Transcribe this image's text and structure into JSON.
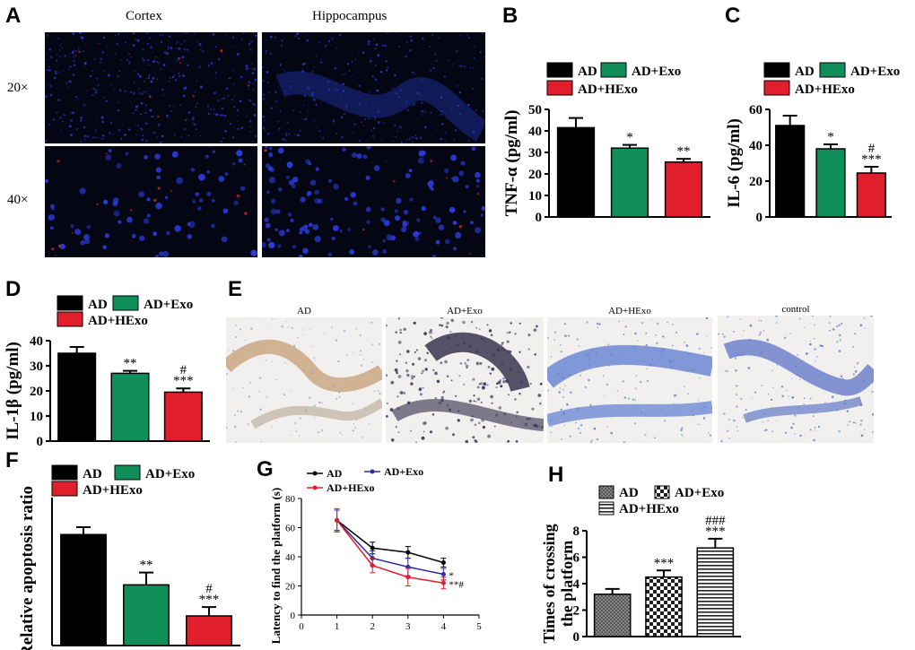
{
  "panel_labels": {
    "A": "A",
    "B": "B",
    "C": "C",
    "D": "D",
    "E": "E",
    "F": "F",
    "G": "G",
    "H": "H"
  },
  "panel_a": {
    "columns": [
      "Cortex",
      "Hippocampus"
    ],
    "rows": [
      "20×",
      "40×"
    ]
  },
  "panel_e": {
    "images": [
      "AD",
      "AD+Exo",
      "AD+HExo",
      "control"
    ]
  },
  "colors": {
    "AD": "#000000",
    "AD+Exo": "#0f8e5a",
    "AD+HExo": "#e01e2c",
    "Exo_line": "#2b2ba8"
  },
  "chart_data": [
    {
      "id": "B",
      "type": "bar",
      "categories": [
        "AD",
        "AD+Exo",
        "AD+HExo"
      ],
      "legend": [
        "AD",
        "AD+Exo",
        "AD+HExo"
      ],
      "values": [
        41.5,
        32,
        25.5
      ],
      "errors": [
        4.5,
        1.5,
        1.5
      ],
      "annotations": [
        "",
        "*",
        "**"
      ],
      "ylabel": "TNF-α  (pg/ml)",
      "ylim": [
        0,
        50
      ],
      "yticks": [
        0,
        10,
        20,
        30,
        40,
        50
      ]
    },
    {
      "id": "C",
      "type": "bar",
      "categories": [
        "AD",
        "AD+Exo",
        "AD+HExo"
      ],
      "legend": [
        "AD",
        "AD+Exo",
        "AD+HExo"
      ],
      "values": [
        51,
        38,
        24.5
      ],
      "errors": [
        5.5,
        2.5,
        3.5
      ],
      "annotations": [
        "",
        "*",
        "#\n***"
      ],
      "ylabel": "IL-6 (pg/ml)",
      "ylim": [
        0,
        60
      ],
      "yticks": [
        0,
        20,
        40,
        60
      ]
    },
    {
      "id": "D",
      "type": "bar",
      "categories": [
        "AD",
        "AD+Exo",
        "AD+HExo"
      ],
      "legend": [
        "AD",
        "AD+Exo",
        "AD+HExo"
      ],
      "values": [
        35,
        27,
        19.5
      ],
      "errors": [
        2.5,
        1,
        1.5
      ],
      "annotations": [
        "",
        "**",
        "#\n***"
      ],
      "ylabel": "IL-1β  (pg/ml)",
      "ylim": [
        0,
        40
      ],
      "yticks": [
        0,
        10,
        20,
        30,
        40
      ]
    },
    {
      "id": "F",
      "type": "bar",
      "categories": [
        "AD",
        "AD+Exo",
        "AD+HExo"
      ],
      "legend": [
        "AD",
        "AD+Exo",
        "AD+HExo"
      ],
      "values": [
        22.5,
        12.3,
        6
      ],
      "errors": [
        1.5,
        2.5,
        1.8
      ],
      "annotations": [
        "",
        "**",
        "#\n***"
      ],
      "ylabel": "Relative apoptosis ratio",
      "ylim": [
        0,
        30
      ],
      "yticks": []
    },
    {
      "id": "G",
      "type": "line",
      "x": [
        1,
        2,
        3,
        4
      ],
      "series": [
        {
          "name": "AD",
          "values": [
            65,
            46,
            43,
            36
          ],
          "errors": [
            7,
            4,
            4,
            3
          ]
        },
        {
          "name": "AD+Exo",
          "values": [
            65,
            39,
            33,
            28
          ],
          "errors": [
            7,
            5,
            6,
            4
          ]
        },
        {
          "name": "AD+HExo",
          "values": [
            65,
            34,
            26,
            22
          ],
          "errors": [
            8,
            5,
            6,
            4
          ]
        }
      ],
      "end_annotations": [
        "",
        "*",
        "**#"
      ],
      "ylabel": "Latency to find the platform (s)",
      "xlim": [
        0,
        5
      ],
      "ylim": [
        0,
        80
      ],
      "xticks": [
        0,
        1,
        2,
        3,
        4,
        5
      ],
      "yticks": [
        0,
        20,
        40,
        60,
        80
      ]
    },
    {
      "id": "H",
      "type": "bar",
      "categories": [
        "AD",
        "AD+Exo",
        "AD+HExo"
      ],
      "legend": [
        "AD",
        "AD+Exo",
        "AD+HExo"
      ],
      "values": [
        3.2,
        4.5,
        6.7
      ],
      "errors": [
        0.4,
        0.5,
        0.7
      ],
      "annotations": [
        "",
        "***",
        "###\n***"
      ],
      "ylabel": "Times of crossing\nthe platform",
      "ylim": [
        0,
        8
      ],
      "yticks": [
        0,
        2,
        4,
        6,
        8
      ]
    }
  ]
}
